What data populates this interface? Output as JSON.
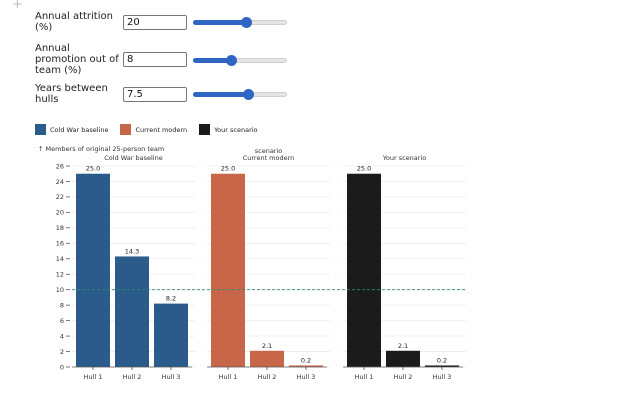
{
  "controls": [
    {
      "label": "Annual attrition (%)",
      "value": "20",
      "slider_fraction": 0.56
    },
    {
      "label": "Annual promotion out of team (%)",
      "value": "8",
      "slider_fraction": 0.4
    },
    {
      "label": "Years between hulls",
      "value": "7.5",
      "slider_fraction": 0.58
    }
  ],
  "legend": [
    {
      "label": "Cold War baseline",
      "color": "#2b5b8a"
    },
    {
      "label": "Current modern",
      "color": "#c8664a"
    },
    {
      "label": "Your scenario",
      "color": "#1b1b1b"
    }
  ],
  "chart_data": {
    "type": "bar",
    "ylabel": "↑ Members of original 25-person team",
    "ylim": [
      0,
      26
    ],
    "yticks": [
      0,
      2,
      4,
      6,
      8,
      10,
      12,
      14,
      16,
      18,
      20,
      22,
      24,
      26
    ],
    "reference_line": 10,
    "grid": true,
    "categories": [
      "Hull 1",
      "Hull 2",
      "Hull 3"
    ],
    "panels": [
      {
        "title_lines": [
          "Cold War baseline"
        ],
        "color": "#2b5b8a",
        "values": [
          25.0,
          14.3,
          8.2
        ],
        "labels": [
          "25.0",
          "14.3",
          "8.2"
        ]
      },
      {
        "title_lines": [
          "scenario",
          "Current modern"
        ],
        "color": "#c8664a",
        "values": [
          25.0,
          2.1,
          0.2
        ],
        "labels": [
          "25.0",
          "2.1",
          "0.2"
        ]
      },
      {
        "title_lines": [
          "Your scenario"
        ],
        "color": "#1b1b1b",
        "values": [
          25.0,
          2.1,
          0.2
        ],
        "labels": [
          "25.0",
          "2.1",
          "0.2"
        ]
      }
    ]
  }
}
